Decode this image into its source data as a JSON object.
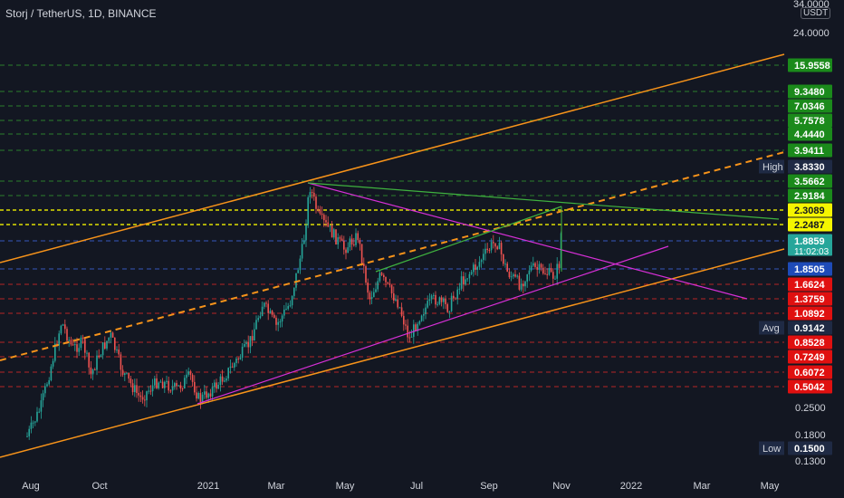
{
  "header": {
    "symbol_title": "Storj / TetherUS, 1D, BINANCE"
  },
  "price_axis": {
    "currency": "USDT",
    "scale": "log",
    "top_label": "34.0000",
    "tick_labels": [
      "24.0000",
      "0.2500",
      "0.1800",
      "0.1300"
    ]
  },
  "time_axis": [
    "Aug",
    "Oct",
    "2021",
    "Mar",
    "May",
    "Jul",
    "Sep",
    "Nov",
    "2022",
    "Mar",
    "May"
  ],
  "price_badges": [
    {
      "value": "15.9558",
      "color": "#1b8a1b",
      "text_color": "#ffffff"
    },
    {
      "value": "9.3480",
      "color": "#1b8a1b",
      "text_color": "#ffffff"
    },
    {
      "value": "7.0346",
      "color": "#1b8a1b",
      "text_color": "#ffffff"
    },
    {
      "value": "5.7578",
      "color": "#1b8a1b",
      "text_color": "#ffffff"
    },
    {
      "value": "4.4440",
      "color": "#1b8a1b",
      "text_color": "#ffffff"
    },
    {
      "value": "3.9411",
      "color": "#1b8a1b",
      "text_color": "#ffffff"
    },
    {
      "value": "3.8330",
      "color": "#1f2a44",
      "text_color": "#ffffff",
      "tag": "High"
    },
    {
      "value": "3.5662",
      "color": "#1b8a1b",
      "text_color": "#ffffff"
    },
    {
      "value": "2.9184",
      "color": "#1b8a1b",
      "text_color": "#ffffff"
    },
    {
      "value": "2.3089",
      "color": "#f5f500",
      "text_color": "#131722"
    },
    {
      "value": "2.2487",
      "color": "#f5f500",
      "text_color": "#131722"
    },
    {
      "value": "1.8859",
      "color": "#26a69a",
      "text_color": "#ffffff",
      "sub": "11:02:03"
    },
    {
      "value": "1.8505",
      "color": "#1e4bb8",
      "text_color": "#ffffff"
    },
    {
      "value": "1.6624",
      "color": "#e01010",
      "text_color": "#ffffff"
    },
    {
      "value": "1.3759",
      "color": "#e01010",
      "text_color": "#ffffff"
    },
    {
      "value": "1.0892",
      "color": "#e01010",
      "text_color": "#ffffff"
    },
    {
      "value": "0.9142",
      "color": "#1f2a44",
      "text_color": "#ffffff",
      "tag": "Avg"
    },
    {
      "value": "0.8528",
      "color": "#e01010",
      "text_color": "#ffffff"
    },
    {
      "value": "0.7249",
      "color": "#e01010",
      "text_color": "#ffffff"
    },
    {
      "value": "0.6072",
      "color": "#e01010",
      "text_color": "#ffffff"
    },
    {
      "value": "0.5042",
      "color": "#e01010",
      "text_color": "#ffffff"
    },
    {
      "value": "0.1500",
      "color": "#1f2a44",
      "text_color": "#ffffff",
      "tag": "Low"
    }
  ],
  "colors": {
    "background": "#131722",
    "up": "#26a69a",
    "down": "#ef5350",
    "channel": "#f7931a",
    "magenta": "#d62fd6",
    "green_line": "#3fb23f",
    "green_level": "#2e8b2e",
    "red_level": "#b71c1c",
    "yellow_level": "#f5f500"
  }
}
